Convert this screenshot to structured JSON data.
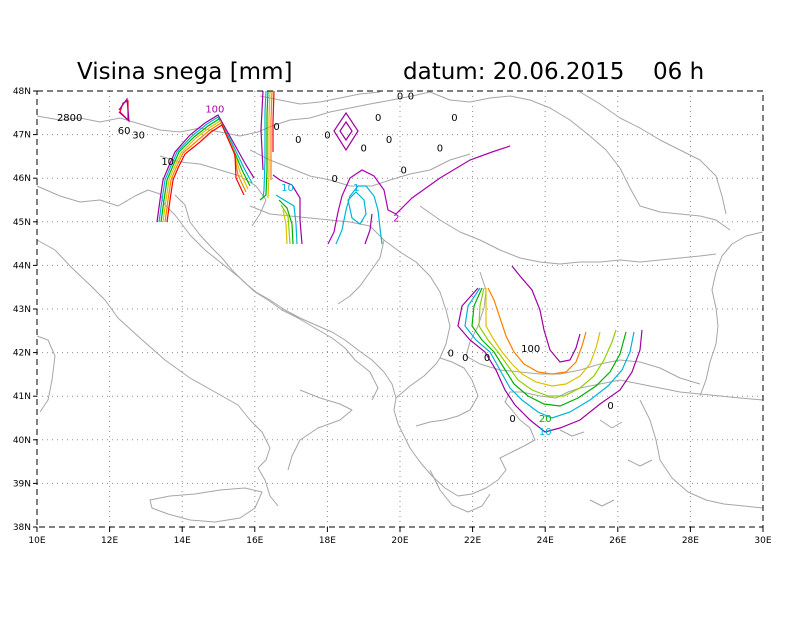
{
  "title": {
    "left": "Visina snega [mm]",
    "date": "datum: 20.06.2015",
    "hour": "06 h"
  },
  "map": {
    "lon_range": [
      10,
      30
    ],
    "lat_range": [
      38,
      48
    ],
    "lon_ticks": [
      "10E",
      "12E",
      "14E",
      "16E",
      "18E",
      "20E",
      "22E",
      "24E",
      "26E",
      "28E",
      "30E"
    ],
    "lat_ticks": [
      "38N",
      "39N",
      "40N",
      "41N",
      "42N",
      "43N",
      "44N",
      "45N",
      "46N",
      "47N",
      "48N"
    ],
    "coastline_color": "#a6a6a6",
    "grid": "dotted"
  },
  "contour_colors": {
    "0": "#a000a0",
    "2": "#b000b0",
    "10": "#00b4d8",
    "20": "#00b000",
    "30": "#90d000",
    "60": "#e0c000",
    "80": "#ff8000",
    "100": "#ff0000"
  },
  "contour_labels": [
    {
      "text": "2800",
      "lon": 10.9,
      "lat": 47.4,
      "color": "#000000"
    },
    {
      "text": "60",
      "lon": 12.4,
      "lat": 47.1,
      "color": "#000000"
    },
    {
      "text": "30",
      "lon": 12.8,
      "lat": 47.0,
      "color": "#000000"
    },
    {
      "text": "10",
      "lon": 13.6,
      "lat": 46.4,
      "color": "#000000"
    },
    {
      "text": "100",
      "lon": 14.9,
      "lat": 47.6,
      "color": "#b000b0"
    },
    {
      "text": "0",
      "lon": 16.6,
      "lat": 47.2,
      "color": "#000000"
    },
    {
      "text": "0",
      "lon": 17.2,
      "lat": 46.9,
      "color": "#000000"
    },
    {
      "text": "0",
      "lon": 18.0,
      "lat": 47.0,
      "color": "#000000"
    },
    {
      "text": "0",
      "lon": 19.0,
      "lat": 46.7,
      "color": "#000000"
    },
    {
      "text": "0",
      "lon": 19.4,
      "lat": 47.4,
      "color": "#000000"
    },
    {
      "text": "0",
      "lon": 20.0,
      "lat": 47.9,
      "color": "#000000"
    },
    {
      "text": "0",
      "lon": 20.3,
      "lat": 47.9,
      "color": "#000000"
    },
    {
      "text": "0",
      "lon": 19.7,
      "lat": 46.9,
      "color": "#000000"
    },
    {
      "text": "0",
      "lon": 21.5,
      "lat": 47.4,
      "color": "#000000"
    },
    {
      "text": "0",
      "lon": 21.1,
      "lat": 46.7,
      "color": "#000000"
    },
    {
      "text": "0",
      "lon": 20.1,
      "lat": 46.2,
      "color": "#000000"
    },
    {
      "text": "0",
      "lon": 18.2,
      "lat": 46.0,
      "color": "#000000"
    },
    {
      "text": "10",
      "lon": 16.9,
      "lat": 45.8,
      "color": "#00b4d8"
    },
    {
      "text": "1",
      "lon": 18.8,
      "lat": 45.8,
      "color": "#00b4d8"
    },
    {
      "text": "2",
      "lon": 19.9,
      "lat": 45.1,
      "color": "#b000b0"
    },
    {
      "text": "100",
      "lon": 23.6,
      "lat": 42.1,
      "color": "#000000"
    },
    {
      "text": "0",
      "lon": 21.4,
      "lat": 42.0,
      "color": "#000000"
    },
    {
      "text": "0",
      "lon": 21.8,
      "lat": 41.9,
      "color": "#000000"
    },
    {
      "text": "0",
      "lon": 22.4,
      "lat": 41.9,
      "color": "#000000"
    },
    {
      "text": "0",
      "lon": 23.1,
      "lat": 40.5,
      "color": "#000000"
    },
    {
      "text": "20",
      "lon": 24.0,
      "lat": 40.5,
      "color": "#00b000"
    },
    {
      "text": "10",
      "lon": 24.0,
      "lat": 40.2,
      "color": "#00b4d8"
    },
    {
      "text": "0",
      "lon": 25.8,
      "lat": 40.8,
      "color": "#000000"
    }
  ]
}
